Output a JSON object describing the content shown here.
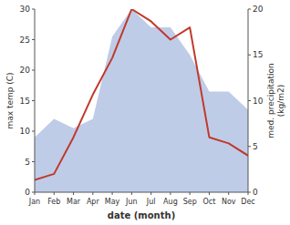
{
  "chart_data": {
    "type": "line",
    "categories": [
      "Jan",
      "Feb",
      "Mar",
      "Apr",
      "May",
      "Jun",
      "Jul",
      "Aug",
      "Sep",
      "Oct",
      "Nov",
      "Dec"
    ],
    "series": [
      {
        "type": "area",
        "color": "#bfcce8",
        "axis": "y2",
        "values": [
          6,
          8,
          7,
          8,
          17,
          20,
          18,
          18,
          15,
          11,
          11,
          9
        ]
      },
      {
        "type": "line",
        "color": "#c0392b",
        "axis": "y",
        "values": [
          2,
          3,
          9,
          16,
          22,
          30,
          28,
          25,
          27,
          9,
          8,
          6
        ]
      }
    ],
    "xlabel": "date (month)",
    "ylabel": "max temp (C)",
    "y2label": "med. precipitation\n(kg/m2)",
    "ylim": [
      0,
      30
    ],
    "yticks": [
      0,
      5,
      10,
      15,
      20,
      25,
      30
    ],
    "y2lim": [
      0,
      20
    ],
    "y2ticks": [
      0,
      5,
      10,
      15,
      20
    ]
  }
}
